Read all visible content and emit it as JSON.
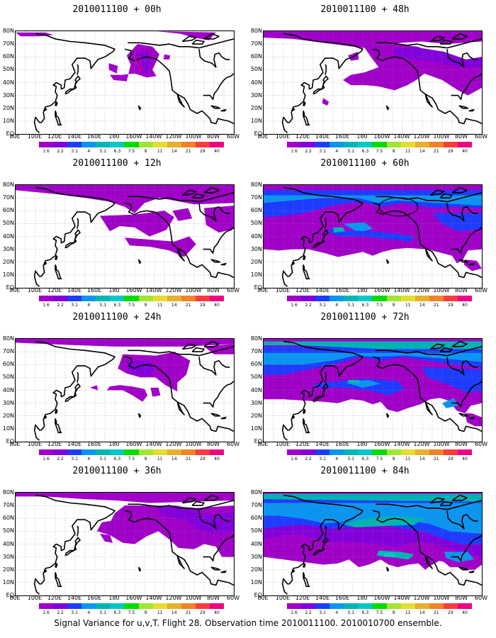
{
  "panels": [
    {
      "title": "2010011100 + 00h",
      "step": 0
    },
    {
      "title": "2010011100 + 48h",
      "step": 4
    },
    {
      "title": "2010011100 + 12h",
      "step": 1
    },
    {
      "title": "2010011100 + 60h",
      "step": 5
    },
    {
      "title": "2010011100 + 24h",
      "step": 2
    },
    {
      "title": "2010011100 + 72h",
      "step": 6
    },
    {
      "title": "2010011100 + 36h",
      "step": 3
    },
    {
      "title": "2010011100 + 84h",
      "step": 7
    }
  ],
  "lat_labels": [
    "80N",
    "70N",
    "60N",
    "50N",
    "40N",
    "30N",
    "20N",
    "10N",
    "EQ"
  ],
  "lon_labels": [
    "80E",
    "100E",
    "120E",
    "140E",
    "160E",
    "180",
    "160W",
    "140W",
    "120W",
    "100W",
    "80W",
    "60W"
  ],
  "colorbar": {
    "levels": [
      "1.6",
      "2.2",
      "3.1",
      "4",
      "5.1",
      "6.3",
      "7.5",
      "9",
      "11",
      "14",
      "21",
      "29",
      "40"
    ],
    "colors": [
      "#a000c8",
      "#8200dc",
      "#1e3cff",
      "#0a96f0",
      "#00b4b4",
      "#00c8c8",
      "#00dc00",
      "#a0e632",
      "#e6dc32",
      "#e6af2d",
      "#f08228",
      "#fa3c3c",
      "#f00082"
    ]
  },
  "caption": "Signal Variance for u,v,T. Flight 28. Observation time 2010011100. 2010010700 ensemble."
}
